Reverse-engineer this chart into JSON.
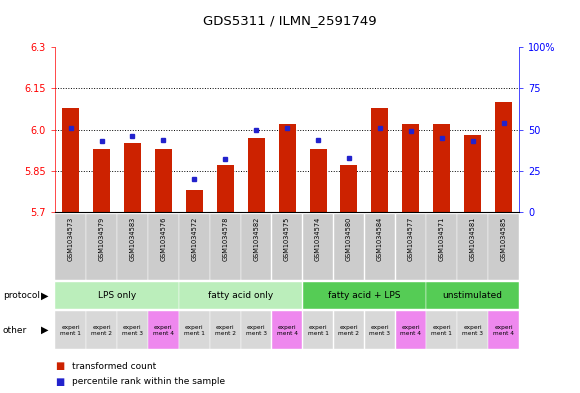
{
  "title": "GDS5311 / ILMN_2591749",
  "samples": [
    "GSM1034573",
    "GSM1034579",
    "GSM1034583",
    "GSM1034576",
    "GSM1034572",
    "GSM1034578",
    "GSM1034582",
    "GSM1034575",
    "GSM1034574",
    "GSM1034580",
    "GSM1034584",
    "GSM1034577",
    "GSM1034571",
    "GSM1034581",
    "GSM1034585"
  ],
  "transformed_count": [
    6.08,
    5.93,
    5.95,
    5.93,
    5.78,
    5.87,
    5.97,
    6.02,
    5.93,
    5.87,
    6.08,
    6.02,
    6.02,
    5.98,
    6.1
  ],
  "percentile_rank": [
    51,
    43,
    46,
    44,
    20,
    32,
    50,
    51,
    44,
    33,
    51,
    49,
    45,
    43,
    54
  ],
  "ylim_left": [
    5.7,
    6.3
  ],
  "ylim_right": [
    0,
    100
  ],
  "yticks_left": [
    5.7,
    5.85,
    6.0,
    6.15,
    6.3
  ],
  "yticks_right": [
    0,
    25,
    50,
    75,
    100
  ],
  "ytick_labels_right": [
    "0",
    "25",
    "50",
    "75",
    "100%"
  ],
  "grid_lines": [
    5.85,
    6.0,
    6.15
  ],
  "protocol_groups": [
    {
      "label": "LPS only",
      "indices": [
        0,
        1,
        2,
        3
      ],
      "color": "#bbeebb"
    },
    {
      "label": "fatty acid only",
      "indices": [
        4,
        5,
        6,
        7
      ],
      "color": "#bbeebb"
    },
    {
      "label": "fatty acid + LPS",
      "indices": [
        8,
        9,
        10,
        11
      ],
      "color": "#55cc55"
    },
    {
      "label": "unstimulated",
      "indices": [
        12,
        13,
        14
      ],
      "color": "#55cc55"
    }
  ],
  "other_colors": [
    "#d8d8d8",
    "#d8d8d8",
    "#d8d8d8",
    "#ee88ee",
    "#d8d8d8",
    "#d8d8d8",
    "#d8d8d8",
    "#ee88ee",
    "#d8d8d8",
    "#d8d8d8",
    "#d8d8d8",
    "#ee88ee",
    "#d8d8d8",
    "#d8d8d8",
    "#ee88ee"
  ],
  "other_label_texts": [
    "experi\nment 1",
    "experi\nment 2",
    "experi\nment 3",
    "experi\nment 4",
    "experi\nment 1",
    "experi\nment 2",
    "experi\nment 3",
    "experi\nment 4",
    "experi\nment 1",
    "experi\nment 2",
    "experi\nment 3",
    "experi\nment 4",
    "experi\nment 1",
    "experi\nment 3",
    "experi\nment 4"
  ],
  "bar_color": "#cc2200",
  "dot_color": "#2222cc",
  "bar_width": 0.55,
  "legend_items": [
    {
      "color": "#cc2200",
      "label": "transformed count"
    },
    {
      "color": "#2222cc",
      "label": "percentile rank within the sample"
    }
  ],
  "xticklabel_bg": "#cccccc",
  "fig_width": 5.8,
  "fig_height": 3.93,
  "dpi": 100
}
